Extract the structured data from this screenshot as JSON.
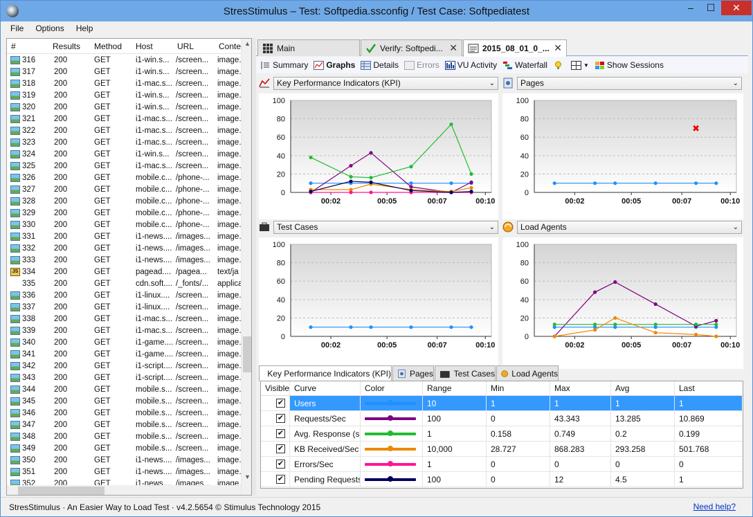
{
  "window": {
    "title": "StresStimulus – Test: Softpedia.ssconfig / Test Case: Softpediatest",
    "min": "–",
    "max": "☐",
    "close": "✕"
  },
  "menu": [
    "File",
    "Options",
    "Help"
  ],
  "sessions": {
    "headers": [
      "#",
      "Results",
      "Method",
      "Host",
      "URL",
      "Conten"
    ],
    "rows": [
      {
        "id": "316",
        "result": "200",
        "method": "GET",
        "host": "i1-win.s...",
        "url": "/screen...",
        "content": "image.",
        "icon": "img"
      },
      {
        "id": "317",
        "result": "200",
        "method": "GET",
        "host": "i1-win.s...",
        "url": "/screen...",
        "content": "image.",
        "icon": "img"
      },
      {
        "id": "318",
        "result": "200",
        "method": "GET",
        "host": "i1-mac.s...",
        "url": "/screen...",
        "content": "image.",
        "icon": "img"
      },
      {
        "id": "319",
        "result": "200",
        "method": "GET",
        "host": "i1-win.s...",
        "url": "/screen...",
        "content": "image.",
        "icon": "img"
      },
      {
        "id": "320",
        "result": "200",
        "method": "GET",
        "host": "i1-win.s...",
        "url": "/screen...",
        "content": "image.",
        "icon": "img"
      },
      {
        "id": "321",
        "result": "200",
        "method": "GET",
        "host": "i1-mac.s...",
        "url": "/screen...",
        "content": "image.",
        "icon": "img"
      },
      {
        "id": "322",
        "result": "200",
        "method": "GET",
        "host": "i1-mac.s...",
        "url": "/screen...",
        "content": "image.",
        "icon": "img"
      },
      {
        "id": "323",
        "result": "200",
        "method": "GET",
        "host": "i1-mac.s...",
        "url": "/screen...",
        "content": "image.",
        "icon": "img"
      },
      {
        "id": "324",
        "result": "200",
        "method": "GET",
        "host": "i1-win.s...",
        "url": "/screen...",
        "content": "image.",
        "icon": "img"
      },
      {
        "id": "325",
        "result": "200",
        "method": "GET",
        "host": "i1-mac.s...",
        "url": "/screen...",
        "content": "image.",
        "icon": "img"
      },
      {
        "id": "326",
        "result": "200",
        "method": "GET",
        "host": "mobile.c...",
        "url": "/phone-...",
        "content": "image.",
        "icon": "img"
      },
      {
        "id": "327",
        "result": "200",
        "method": "GET",
        "host": "mobile.c...",
        "url": "/phone-...",
        "content": "image.",
        "icon": "img"
      },
      {
        "id": "328",
        "result": "200",
        "method": "GET",
        "host": "mobile.c...",
        "url": "/phone-...",
        "content": "image.",
        "icon": "img"
      },
      {
        "id": "329",
        "result": "200",
        "method": "GET",
        "host": "mobile.c...",
        "url": "/phone-...",
        "content": "image.",
        "icon": "img"
      },
      {
        "id": "330",
        "result": "200",
        "method": "GET",
        "host": "mobile.c...",
        "url": "/phone-...",
        "content": "image.",
        "icon": "img"
      },
      {
        "id": "331",
        "result": "200",
        "method": "GET",
        "host": "i1-news....",
        "url": "/images...",
        "content": "image.",
        "icon": "img"
      },
      {
        "id": "332",
        "result": "200",
        "method": "GET",
        "host": "i1-news....",
        "url": "/images...",
        "content": "image.",
        "icon": "img"
      },
      {
        "id": "333",
        "result": "200",
        "method": "GET",
        "host": "i1-news....",
        "url": "/images...",
        "content": "image.",
        "icon": "img"
      },
      {
        "id": "334",
        "result": "200",
        "method": "GET",
        "host": "pagead....",
        "url": "/pagea...",
        "content": "text/ja",
        "icon": "js"
      },
      {
        "id": "335",
        "result": "200",
        "method": "GET",
        "host": "cdn.soft....",
        "url": "/_fonts/...",
        "content": "applica",
        "icon": "none"
      },
      {
        "id": "336",
        "result": "200",
        "method": "GET",
        "host": "i1-linux....",
        "url": "/screen...",
        "content": "image.",
        "icon": "img"
      },
      {
        "id": "337",
        "result": "200",
        "method": "GET",
        "host": "i1-linux....",
        "url": "/screen...",
        "content": "image.",
        "icon": "img"
      },
      {
        "id": "338",
        "result": "200",
        "method": "GET",
        "host": "i1-mac.s...",
        "url": "/screen...",
        "content": "image.",
        "icon": "img"
      },
      {
        "id": "339",
        "result": "200",
        "method": "GET",
        "host": "i1-mac.s...",
        "url": "/screen...",
        "content": "image.",
        "icon": "img"
      },
      {
        "id": "340",
        "result": "200",
        "method": "GET",
        "host": "i1-game....",
        "url": "/screen...",
        "content": "image.",
        "icon": "img"
      },
      {
        "id": "341",
        "result": "200",
        "method": "GET",
        "host": "i1-game....",
        "url": "/screen...",
        "content": "image.",
        "icon": "img"
      },
      {
        "id": "342",
        "result": "200",
        "method": "GET",
        "host": "i1-script....",
        "url": "/screen...",
        "content": "image.",
        "icon": "img"
      },
      {
        "id": "343",
        "result": "200",
        "method": "GET",
        "host": "i1-script....",
        "url": "/screen...",
        "content": "image.",
        "icon": "img"
      },
      {
        "id": "344",
        "result": "200",
        "method": "GET",
        "host": "mobile.s...",
        "url": "/screen...",
        "content": "image.",
        "icon": "img"
      },
      {
        "id": "345",
        "result": "200",
        "method": "GET",
        "host": "mobile.s...",
        "url": "/screen...",
        "content": "image.",
        "icon": "img"
      },
      {
        "id": "346",
        "result": "200",
        "method": "GET",
        "host": "mobile.s...",
        "url": "/screen...",
        "content": "image.",
        "icon": "img"
      },
      {
        "id": "347",
        "result": "200",
        "method": "GET",
        "host": "mobile.s...",
        "url": "/screen...",
        "content": "image.",
        "icon": "img"
      },
      {
        "id": "348",
        "result": "200",
        "method": "GET",
        "host": "mobile.s...",
        "url": "/screen...",
        "content": "image.",
        "icon": "img"
      },
      {
        "id": "349",
        "result": "200",
        "method": "GET",
        "host": "mobile.s...",
        "url": "/screen...",
        "content": "image.",
        "icon": "img"
      },
      {
        "id": "350",
        "result": "200",
        "method": "GET",
        "host": "i1-news....",
        "url": "/images...",
        "content": "image.",
        "icon": "img"
      },
      {
        "id": "351",
        "result": "200",
        "method": "GET",
        "host": "i1-news....",
        "url": "/images...",
        "content": "image.",
        "icon": "img"
      },
      {
        "id": "352",
        "result": "200",
        "method": "GET",
        "host": "i1-news....",
        "url": "/images...",
        "content": "image.",
        "icon": "img"
      }
    ]
  },
  "doc_tabs": [
    {
      "label": "Main",
      "icon": "grid-icon"
    },
    {
      "label": "Verify: Softpedi...",
      "icon": "check-icon"
    },
    {
      "label": "2015_08_01_0_...",
      "icon": "report-icon"
    }
  ],
  "toolbar": [
    "Summary",
    "Graphs",
    "Details",
    "Errors",
    "VU Activity",
    "Waterfall",
    "Show Sessions"
  ],
  "panels": {
    "kpi": "Key Performance Indicators (KPI)",
    "pages": "Pages",
    "test_cases": "Test Cases",
    "load_agents": "Load Agents"
  },
  "colors": {
    "users": "#1e90ff",
    "requests": "#800080",
    "response": "#22bb33",
    "kb": "#ee8800",
    "errors": "#ff1493",
    "pending": "#000060"
  },
  "chart_data": [
    {
      "type": "line",
      "panel": "Key Performance Indicators (KPI)",
      "ylim": [
        0,
        100
      ],
      "yticks": [
        0,
        20,
        40,
        60,
        80,
        100
      ],
      "xticks": [
        "00:02",
        "00:05",
        "00:07",
        "00:10"
      ],
      "x": [
        1,
        3,
        4,
        6,
        8,
        9
      ],
      "series": [
        {
          "name": "Users",
          "color": "#1e90ff",
          "values": [
            10,
            10,
            10,
            10,
            10,
            10
          ]
        },
        {
          "name": "Requests/Sec",
          "color": "#800080",
          "values": [
            0,
            29,
            43,
            6,
            0,
            11
          ]
        },
        {
          "name": "Avg. Response (s)",
          "color": "#22bb33",
          "values": [
            38,
            17,
            16,
            28,
            74,
            20
          ]
        },
        {
          "name": "KB Received/Sec",
          "color": "#ee8800",
          "values": [
            3,
            3,
            9,
            3,
            1,
            5
          ]
        },
        {
          "name": "Errors/Sec",
          "color": "#ff1493",
          "values": [
            0,
            0,
            0,
            0,
            0,
            0
          ]
        },
        {
          "name": "Pending Requests",
          "color": "#000060",
          "values": [
            1,
            12,
            11,
            2,
            0,
            1
          ]
        }
      ]
    },
    {
      "type": "line",
      "panel": "Pages",
      "ylim": [
        0,
        100
      ],
      "yticks": [
        0,
        20,
        40,
        60,
        80,
        100
      ],
      "xticks": [
        "00:02",
        "00:05",
        "00:07",
        "00:10"
      ],
      "x": [
        1,
        3,
        4,
        6,
        8,
        9
      ],
      "series": [
        {
          "name": "",
          "color": "#1e90ff",
          "values": [
            10,
            10,
            10,
            10,
            10,
            10
          ]
        }
      ],
      "markers": [
        {
          "x": 8,
          "y": 70,
          "color": "#ee0000",
          "symbol": "x"
        }
      ]
    },
    {
      "type": "line",
      "panel": "Test Cases",
      "ylim": [
        0,
        100
      ],
      "yticks": [
        0,
        20,
        40,
        60,
        80,
        100
      ],
      "xticks": [
        "00:02",
        "00:05",
        "00:07",
        "00:10"
      ],
      "x": [
        1,
        3,
        4,
        6,
        8,
        9
      ],
      "series": [
        {
          "name": "",
          "color": "#1e90ff",
          "values": [
            10,
            10,
            10,
            10,
            10,
            10
          ]
        }
      ]
    },
    {
      "type": "line",
      "panel": "Load Agents",
      "ylim": [
        0,
        100
      ],
      "yticks": [
        0,
        20,
        40,
        60,
        80,
        100
      ],
      "xticks": [
        "00:02",
        "00:05",
        "00:07",
        "00:10"
      ],
      "x": [
        1,
        3,
        4,
        6,
        8,
        9
      ],
      "series": [
        {
          "name": "",
          "color": "#1e90ff",
          "values": [
            10,
            10,
            10,
            10,
            10,
            10
          ]
        },
        {
          "name": "",
          "color": "#800080",
          "values": [
            0,
            48,
            59,
            35,
            11,
            17
          ]
        },
        {
          "name": "",
          "color": "#22bb33",
          "values": [
            13,
            13,
            13,
            13,
            13,
            13
          ]
        },
        {
          "name": "",
          "color": "#ee8800",
          "values": [
            0,
            7,
            20,
            4,
            2,
            0
          ]
        }
      ]
    }
  ],
  "bottom_tabs": [
    "Key Performance Indicators (KPI)",
    "Pages",
    "Test Cases",
    "Load Agents"
  ],
  "grid": {
    "headers": [
      "Visible",
      "Curve",
      "Color",
      "Range",
      "Min",
      "Max",
      "Avg",
      "Last"
    ],
    "rows": [
      {
        "curve": "Users",
        "color": "#1e90ff",
        "range": "10",
        "min": "1",
        "max": "1",
        "avg": "1",
        "last": "1",
        "selected": true
      },
      {
        "curve": "Requests/Sec",
        "color": "#800080",
        "range": "100",
        "min": "0",
        "max": "43.343",
        "avg": "13.285",
        "last": "10.869"
      },
      {
        "curve": "Avg. Response (s)",
        "color": "#22bb33",
        "range": "1",
        "min": "0.158",
        "max": "0.749",
        "avg": "0.2",
        "last": "0.199"
      },
      {
        "curve": "KB Received/Sec",
        "color": "#ee8800",
        "range": "10,000",
        "min": "28.727",
        "max": "868.283",
        "avg": "293.258",
        "last": "501.768"
      },
      {
        "curve": "Errors/Sec",
        "color": "#ff1493",
        "range": "1",
        "min": "0",
        "max": "0",
        "avg": "0",
        "last": "0"
      },
      {
        "curve": "Pending Requests",
        "color": "#000060",
        "range": "100",
        "min": "0",
        "max": "12",
        "avg": "4.5",
        "last": "1"
      }
    ]
  },
  "status": {
    "text": "StresStimulus · An Easier Way to Load Test · v4.2.5654 © Stimulus Technology 2015",
    "help": "Need help?"
  }
}
